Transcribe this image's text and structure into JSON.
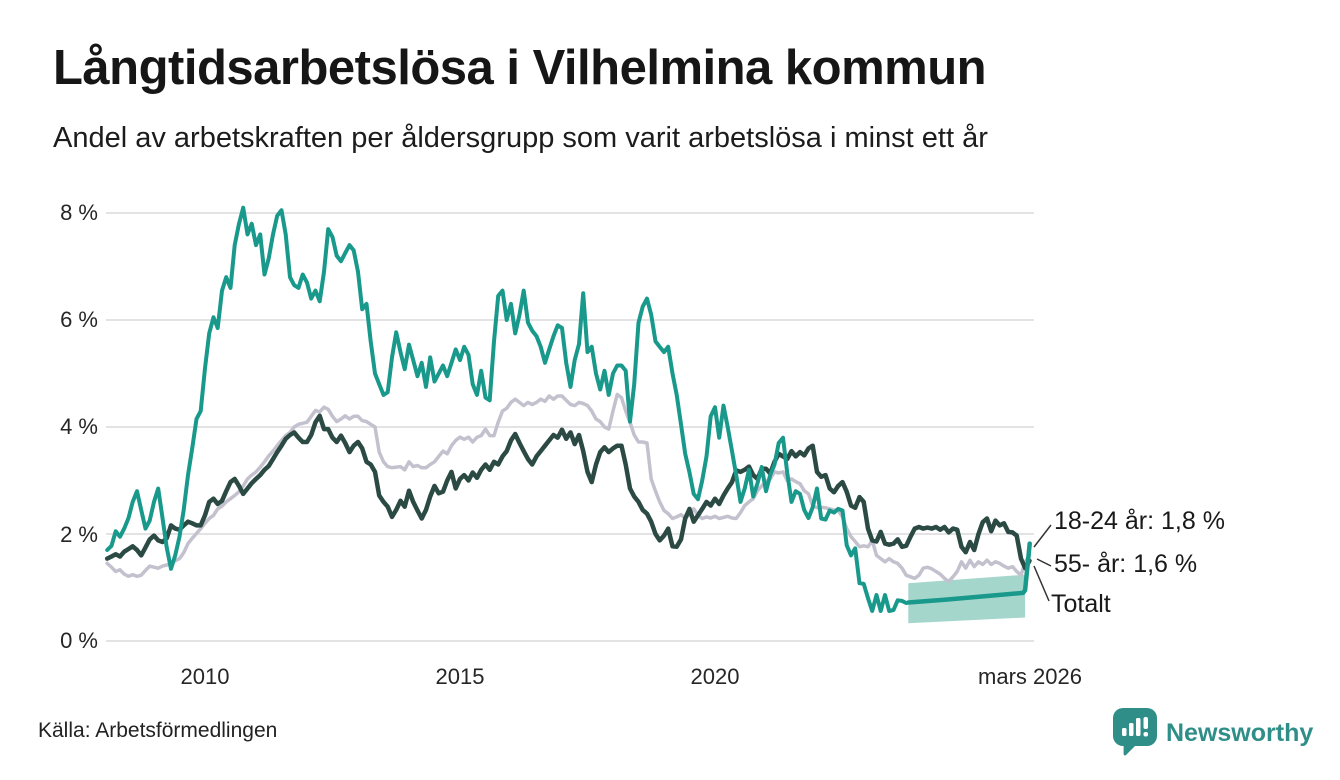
{
  "header": {
    "title": "Långtidsarbetslösa i Vilhelmina kommun",
    "subtitle": "Andel av arbetskraften per åldersgrupp som varit arbetslösa i minst ett år"
  },
  "chart_data": {
    "type": "line",
    "title": "Långtidsarbetslösa i Vilhelmina kommun",
    "subtitle": "Andel av arbetskraften per åldersgrupp som varit arbetslösa i minst ett år",
    "unit": "%",
    "grid": true,
    "legend_position": "end-of-line labels (right)",
    "colors": {
      "youth": "#18998b",
      "senior": "#c3c1ce",
      "total": "#2c4a44",
      "band": "#a5d6cc",
      "gridline": "#e3e3e6",
      "leader": "#333333"
    },
    "y_axis": {
      "ticks": [
        "0 %",
        "2 %",
        "4 %",
        "6 %",
        "8 %"
      ],
      "values": [
        0,
        2,
        4,
        6,
        8
      ],
      "range": [
        0,
        8.4
      ]
    },
    "x_axis": {
      "ticks": [
        "2010",
        "2015",
        "2020",
        "mars 2026"
      ],
      "tick_values": [
        2010.0,
        2015.0,
        2020.0,
        2026.17
      ],
      "range_years": [
        2008.08,
        2026.25
      ]
    },
    "annotations": [
      "18-24 år: 1,8 %",
      "55- år: 1,6 %",
      "Totalt"
    ],
    "series": [
      {
        "name": "18-24 år",
        "end_label": "18-24 år: 1,8 %",
        "end_value": 1.82,
        "color": "#18998b",
        "width": 4,
        "start": 2008.0833,
        "step_months": 1,
        "values": [
          1.7,
          1.78,
          2.05,
          1.95,
          2.1,
          2.3,
          2.6,
          2.8,
          2.45,
          2.1,
          2.25,
          2.6,
          2.85,
          2.3,
          1.75,
          1.35,
          1.6,
          1.95,
          2.45,
          3.1,
          3.6,
          4.15,
          4.3,
          5.1,
          5.75,
          6.05,
          5.85,
          6.55,
          6.8,
          6.6,
          7.4,
          7.8,
          8.1,
          7.6,
          7.8,
          7.4,
          7.6,
          6.85,
          7.15,
          7.6,
          7.95,
          8.05,
          7.6,
          6.8,
          6.65,
          6.6,
          6.85,
          6.7,
          6.4,
          6.55,
          6.35,
          6.9,
          7.7,
          7.55,
          7.2,
          7.1,
          7.25,
          7.4,
          7.3,
          6.9,
          6.2,
          6.3,
          5.6,
          5.0,
          4.8,
          4.6,
          4.65,
          5.3,
          5.77,
          5.4,
          5.08,
          5.54,
          5.25,
          4.95,
          5.2,
          4.75,
          5.3,
          4.85,
          5.0,
          5.15,
          4.95,
          5.2,
          5.45,
          5.25,
          5.5,
          5.35,
          4.8,
          4.6,
          5.05,
          4.55,
          4.5,
          5.6,
          6.45,
          6.55,
          6.0,
          6.3,
          5.75,
          6.1,
          6.55,
          5.95,
          5.8,
          5.7,
          5.5,
          5.2,
          5.45,
          5.7,
          5.9,
          5.85,
          5.2,
          4.75,
          5.25,
          5.55,
          6.5,
          5.4,
          5.5,
          5.0,
          4.7,
          5.05,
          4.6,
          5.0,
          5.15,
          5.15,
          5.05,
          4.1,
          4.8,
          5.95,
          6.25,
          6.4,
          6.1,
          5.6,
          5.5,
          5.4,
          5.5,
          5.0,
          4.6,
          4.05,
          3.5,
          3.15,
          2.75,
          2.65,
          3.0,
          3.45,
          4.2,
          4.37,
          3.8,
          4.4,
          4.0,
          3.55,
          3.1,
          2.6,
          2.85,
          3.2,
          2.7,
          2.95,
          3.25,
          2.8,
          3.1,
          3.3,
          3.7,
          3.8,
          3.15,
          2.6,
          2.8,
          2.75,
          2.45,
          2.3,
          2.5,
          2.85,
          2.29,
          2.27,
          2.44,
          2.4,
          2.47,
          2.44,
          1.79,
          1.6,
          1.73,
          1.08,
          1.07,
          0.8,
          0.56,
          0.86,
          0.56,
          0.86,
          0.56,
          0.58,
          0.76,
          0.75,
          0.71
        ],
        "smoothed_tail": [
          [
            2023.79,
            0.72
          ],
          [
            2024.5,
            0.77
          ],
          [
            2025.2,
            0.83
          ],
          [
            2026.04,
            0.9
          ],
          [
            2026.08,
            0.95
          ],
          [
            2026.17,
            1.82
          ]
        ],
        "confidence_band": {
          "x0": 2023.79,
          "x1": 2026.08,
          "top0": 1.08,
          "top1": 1.24,
          "bottom0": 0.33,
          "bottom1": 0.44
        }
      },
      {
        "name": "55- år",
        "end_label": "55- år: 1,6 %",
        "end_value": 1.6,
        "color": "#c3c1ce",
        "width": 3.5,
        "start": 2008.0833,
        "step_months": 1,
        "values": [
          1.45,
          1.38,
          1.3,
          1.33,
          1.25,
          1.21,
          1.24,
          1.21,
          1.23,
          1.32,
          1.4,
          1.38,
          1.36,
          1.4,
          1.42,
          1.45,
          1.5,
          1.54,
          1.65,
          1.82,
          1.92,
          2.01,
          2.1,
          2.2,
          2.29,
          2.35,
          2.47,
          2.52,
          2.6,
          2.66,
          2.72,
          2.79,
          2.9,
          3.03,
          3.1,
          3.16,
          3.25,
          3.35,
          3.46,
          3.55,
          3.65,
          3.75,
          3.84,
          3.9,
          4.0,
          4.05,
          4.07,
          4.09,
          4.2,
          4.31,
          4.28,
          4.37,
          4.33,
          4.2,
          4.1,
          4.15,
          4.21,
          4.15,
          4.2,
          4.2,
          4.12,
          4.1,
          4.05,
          4.0,
          3.53,
          3.35,
          3.26,
          3.24,
          3.25,
          3.26,
          3.2,
          3.35,
          3.26,
          3.28,
          3.24,
          3.24,
          3.3,
          3.35,
          3.45,
          3.55,
          3.5,
          3.65,
          3.75,
          3.81,
          3.77,
          3.81,
          3.72,
          3.81,
          3.84,
          3.96,
          3.84,
          3.84,
          4.09,
          4.3,
          4.35,
          4.46,
          4.52,
          4.46,
          4.4,
          4.46,
          4.42,
          4.46,
          4.52,
          4.48,
          4.58,
          4.52,
          4.58,
          4.58,
          4.5,
          4.42,
          4.4,
          4.46,
          4.44,
          4.4,
          4.3,
          4.15,
          4.1,
          4.0,
          3.96,
          4.3,
          4.61,
          4.55,
          4.3,
          4.09,
          3.85,
          3.72,
          3.72,
          3.7,
          3.03,
          2.8,
          2.6,
          2.44,
          2.38,
          2.29,
          2.32,
          2.36,
          2.3,
          2.36,
          2.47,
          2.35,
          2.29,
          2.32,
          2.3,
          2.33,
          2.29,
          2.31,
          2.33,
          2.3,
          2.29,
          2.4,
          2.53,
          2.6,
          2.66,
          2.81,
          2.9,
          2.98,
          3.03,
          3.16,
          3.14,
          3.16,
          3.0,
          3.03,
          2.98,
          2.94,
          2.81,
          2.75,
          2.53,
          2.49,
          2.5,
          2.49,
          2.47,
          2.45,
          2.44,
          2.32,
          2.1,
          1.95,
          1.86,
          1.76,
          1.78,
          1.76,
          1.88,
          1.6,
          1.54,
          1.48,
          1.54,
          1.48,
          1.45,
          1.36,
          1.23,
          1.2,
          1.17,
          1.23,
          1.36,
          1.38,
          1.35,
          1.3,
          1.25,
          1.17,
          1.11,
          1.2,
          1.3,
          1.48,
          1.36,
          1.51,
          1.39,
          1.48,
          1.43,
          1.51,
          1.43,
          1.48,
          1.45,
          1.4,
          1.36,
          1.39,
          1.3,
          1.23,
          1.48,
          1.6
        ]
      },
      {
        "name": "Totalt",
        "end_label": "Totalt",
        "end_value": 1.5,
        "color": "#2c4a44",
        "width": 4.5,
        "start": 2008.0833,
        "step_months": 1,
        "values": [
          1.54,
          1.58,
          1.62,
          1.58,
          1.67,
          1.72,
          1.77,
          1.7,
          1.6,
          1.75,
          1.9,
          1.97,
          1.88,
          1.85,
          1.92,
          2.16,
          2.1,
          2.08,
          2.16,
          2.23,
          2.2,
          2.16,
          2.16,
          2.35,
          2.6,
          2.66,
          2.56,
          2.62,
          2.8,
          2.97,
          3.03,
          2.9,
          2.75,
          2.85,
          2.95,
          3.03,
          3.1,
          3.2,
          3.27,
          3.4,
          3.53,
          3.65,
          3.78,
          3.85,
          3.9,
          3.8,
          3.72,
          3.72,
          3.85,
          4.09,
          4.21,
          3.96,
          3.96,
          3.8,
          3.72,
          3.84,
          3.7,
          3.53,
          3.65,
          3.72,
          3.6,
          3.35,
          3.3,
          3.16,
          2.72,
          2.6,
          2.51,
          2.32,
          2.45,
          2.62,
          2.51,
          2.81,
          2.6,
          2.44,
          2.29,
          2.45,
          2.7,
          2.9,
          2.76,
          2.79,
          3.0,
          3.16,
          2.85,
          3.03,
          3.1,
          3.0,
          3.15,
          3.05,
          3.2,
          3.3,
          3.2,
          3.35,
          3.3,
          3.45,
          3.55,
          3.75,
          3.87,
          3.7,
          3.55,
          3.4,
          3.3,
          3.45,
          3.55,
          3.65,
          3.75,
          3.85,
          3.8,
          3.95,
          3.78,
          3.9,
          3.68,
          3.85,
          3.55,
          3.16,
          2.97,
          3.3,
          3.53,
          3.62,
          3.53,
          3.6,
          3.65,
          3.65,
          3.3,
          2.85,
          2.7,
          2.6,
          2.45,
          2.38,
          2.23,
          2.0,
          1.88,
          1.97,
          2.1,
          1.77,
          1.76,
          1.9,
          2.29,
          2.47,
          2.23,
          2.35,
          2.47,
          2.6,
          2.53,
          2.66,
          2.56,
          2.72,
          2.85,
          2.97,
          3.19,
          3.16,
          3.2,
          3.26,
          3.1,
          3.03,
          3.22,
          3.22,
          3.13,
          3.35,
          3.5,
          3.45,
          3.4,
          3.55,
          3.45,
          3.53,
          3.47,
          3.6,
          3.65,
          3.16,
          3.07,
          3.1,
          2.85,
          2.78,
          2.9,
          2.97,
          2.79,
          2.53,
          2.49,
          2.69,
          2.6,
          2.1,
          1.88,
          1.86,
          2.04,
          1.82,
          1.8,
          1.82,
          1.9,
          1.76,
          1.78,
          1.95,
          2.1,
          2.13,
          2.1,
          2.12,
          2.1,
          2.13,
          2.08,
          2.13,
          2.03,
          2.1,
          2.08,
          1.76,
          1.66,
          1.85,
          1.7,
          2.0,
          2.22,
          2.29,
          2.05,
          2.25,
          2.16,
          2.2,
          2.04,
          2.03,
          1.97,
          1.54,
          1.36,
          1.5
        ]
      }
    ]
  },
  "footer": {
    "source": "Källa: Arbetsförmedlingen",
    "brand": "Newsworthy",
    "brand_icon": "newsworthy-bar-chart-bubble-icon"
  }
}
